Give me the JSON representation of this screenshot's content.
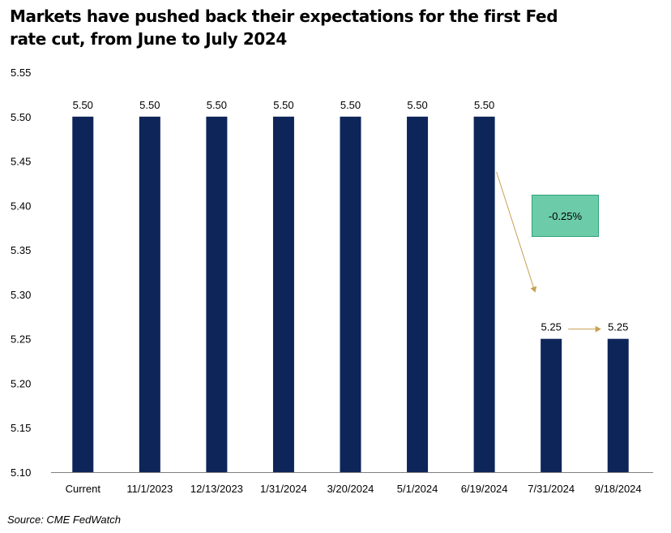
{
  "title_lines": [
    "Markets have pushed back their expectations for the first Fed",
    "rate cut, from June to July 2024"
  ],
  "source": "Source: CME FedWatch",
  "callout_text": "-0.25%",
  "colors": {
    "bar": "#0d2559",
    "arrow": "#c6a052",
    "callout_fill": "#6ccba9"
  },
  "chart_data": {
    "type": "bar",
    "title": "Markets have pushed back their expectations for the first Fed rate cut, from June to July 2024",
    "xlabel": "",
    "ylabel": "",
    "categories": [
      "Current",
      "11/1/2023",
      "12/13/2023",
      "1/31/2024",
      "3/20/2024",
      "5/1/2024",
      "6/19/2024",
      "7/31/2024",
      "9/18/2024"
    ],
    "values": [
      5.5,
      5.5,
      5.5,
      5.5,
      5.5,
      5.5,
      5.5,
      5.25,
      5.25
    ],
    "value_labels": [
      "5.50",
      "5.50",
      "5.50",
      "5.50",
      "5.50",
      "5.50",
      "5.50",
      "5.25",
      "5.25"
    ],
    "ylim": [
      5.1,
      5.55
    ],
    "yticks": [
      "5.55",
      "5.50",
      "5.45",
      "5.40",
      "5.35",
      "5.30",
      "5.25",
      "5.20",
      "5.15",
      "5.10"
    ],
    "grid": false,
    "legend": "none",
    "annotations": [
      {
        "text": "-0.25%",
        "from_category": "6/19/2024",
        "to_category": "7/31/2024"
      }
    ]
  }
}
